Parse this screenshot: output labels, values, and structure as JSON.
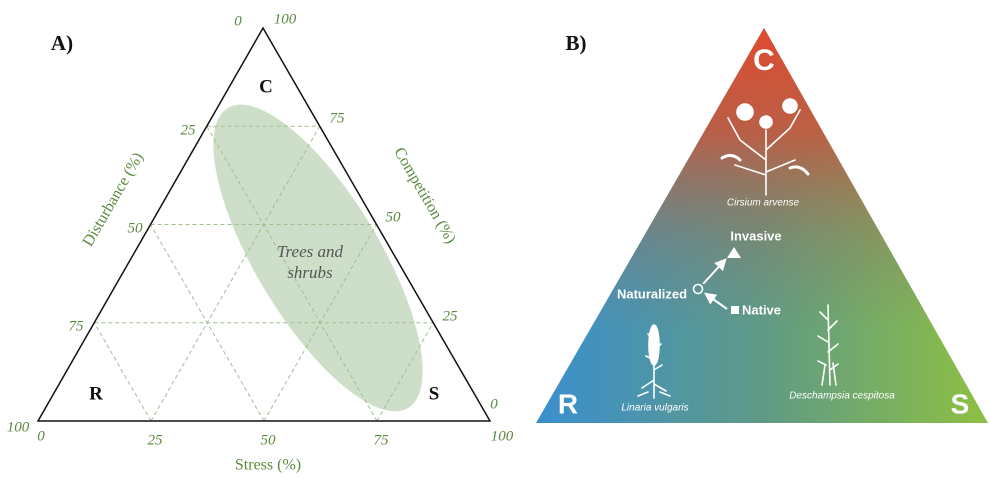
{
  "panel_a": {
    "label": "A)",
    "corners": {
      "c": "C",
      "r": "R",
      "s": "S"
    },
    "disturbance_axis": {
      "title": "Disturbance (%)",
      "ticks": [
        0,
        25,
        50,
        75,
        100
      ]
    },
    "competition_axis": {
      "title": "Competition (%)",
      "ticks": [
        100,
        75,
        50,
        25,
        0
      ]
    },
    "stress_axis": {
      "title": "Stress (%)",
      "ticks": [
        0,
        25,
        50,
        75,
        100
      ]
    },
    "region": {
      "line1": "Trees and",
      "line2": "shrubs"
    }
  },
  "panel_b": {
    "label": "B)",
    "corners": {
      "c": "C",
      "r": "R",
      "s": "S"
    },
    "plants": {
      "top": "Cirsium arvense",
      "left": "Linaria vulgaris",
      "right": "Deschampsia cespitosa"
    },
    "status": {
      "invasive": "Invasive",
      "naturalized": "Naturalized",
      "native": "Native"
    }
  }
}
